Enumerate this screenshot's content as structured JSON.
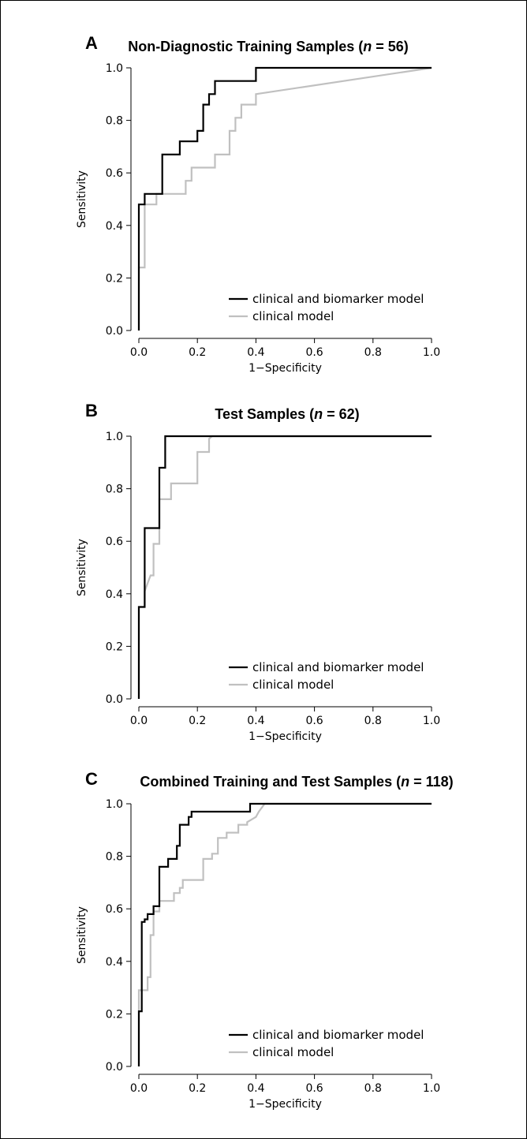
{
  "chart_data": [
    {
      "type": "line",
      "panel": "A",
      "title": "Non-Diagnostic Training Samples (",
      "title_n": "n",
      "title_end": " = 56)",
      "xlabel": "1−Specificity",
      "ylabel": "Sensitivity",
      "xlim": [
        0,
        1
      ],
      "ylim": [
        0,
        1
      ],
      "xticks": [
        "0.0",
        "0.2",
        "0.4",
        "0.6",
        "0.8",
        "1.0"
      ],
      "yticks": [
        "0.0",
        "0.2",
        "0.4",
        "0.6",
        "0.8",
        "1.0"
      ],
      "legend_position": "bottom-right",
      "series": [
        {
          "name": "clinical and biomarker model",
          "color": "#000000",
          "x": [
            0,
            0,
            0.02,
            0.02,
            0.08,
            0.08,
            0.14,
            0.14,
            0.2,
            0.2,
            0.22,
            0.22,
            0.24,
            0.24,
            0.26,
            0.26,
            0.28,
            0.28,
            0.4,
            0.4,
            1.0
          ],
          "y": [
            0,
            0.48,
            0.48,
            0.52,
            0.52,
            0.67,
            0.67,
            0.72,
            0.72,
            0.76,
            0.76,
            0.86,
            0.86,
            0.9,
            0.9,
            0.95,
            0.95,
            0.95,
            0.95,
            1.0,
            1.0
          ]
        },
        {
          "name": "clinical model",
          "color": "#c0c0c0",
          "x": [
            0,
            0,
            0.02,
            0.02,
            0.04,
            0.04,
            0.06,
            0.06,
            0.14,
            0.14,
            0.16,
            0.16,
            0.18,
            0.18,
            0.26,
            0.26,
            0.31,
            0.31,
            0.33,
            0.33,
            0.35,
            0.35,
            0.37,
            0.37,
            0.4,
            0.4,
            1.0
          ],
          "y": [
            0,
            0.24,
            0.24,
            0.48,
            0.48,
            0.48,
            0.48,
            0.52,
            0.52,
            0.52,
            0.52,
            0.57,
            0.57,
            0.62,
            0.62,
            0.67,
            0.67,
            0.76,
            0.76,
            0.81,
            0.81,
            0.86,
            0.86,
            0.86,
            0.86,
            0.9,
            1.0
          ]
        }
      ]
    },
    {
      "type": "line",
      "panel": "B",
      "title": "Test Samples (",
      "title_n": "n",
      "title_end": " = 62)",
      "xlabel": "1−Specificity",
      "ylabel": "Sensitivity",
      "xlim": [
        0,
        1
      ],
      "ylim": [
        0,
        1
      ],
      "xticks": [
        "0.0",
        "0.2",
        "0.4",
        "0.6",
        "0.8",
        "1.0"
      ],
      "yticks": [
        "0.0",
        "0.2",
        "0.4",
        "0.6",
        "0.8",
        "1.0"
      ],
      "legend_position": "bottom-right",
      "series": [
        {
          "name": "clinical and biomarker model",
          "color": "#000000",
          "x": [
            0,
            0,
            0.02,
            0.02,
            0.07,
            0.07,
            0.09,
            0.09,
            1.0
          ],
          "y": [
            0,
            0.35,
            0.35,
            0.65,
            0.65,
            0.88,
            0.88,
            1.0,
            1.0
          ]
        },
        {
          "name": "clinical model",
          "color": "#c0c0c0",
          "x": [
            0,
            0,
            0.02,
            0.02,
            0.04,
            0.05,
            0.05,
            0.07,
            0.07,
            0.11,
            0.11,
            0.2,
            0.2,
            0.24,
            0.24,
            0.25,
            1.0
          ],
          "y": [
            0,
            0.35,
            0.35,
            0.41,
            0.47,
            0.47,
            0.59,
            0.59,
            0.76,
            0.76,
            0.82,
            0.82,
            0.94,
            0.94,
            0.99,
            1.0,
            1.0
          ]
        }
      ]
    },
    {
      "type": "line",
      "panel": "C",
      "title": "Combined Training and Test Samples (",
      "title_n": "n",
      "title_end": " = 118)",
      "xlabel": "1−Specificity",
      "ylabel": "Sensitivity",
      "xlim": [
        0,
        1
      ],
      "ylim": [
        0,
        1
      ],
      "xticks": [
        "0.0",
        "0.2",
        "0.4",
        "0.6",
        "0.8",
        "1.0"
      ],
      "yticks": [
        "0.0",
        "0.2",
        "0.4",
        "0.6",
        "0.8",
        "1.0"
      ],
      "legend_position": "bottom-right",
      "series": [
        {
          "name": "clinical and biomarker model",
          "color": "#000000",
          "x": [
            0,
            0,
            0.01,
            0.01,
            0.02,
            0.02,
            0.03,
            0.03,
            0.05,
            0.05,
            0.07,
            0.07,
            0.1,
            0.1,
            0.13,
            0.13,
            0.14,
            0.14,
            0.15,
            0.15,
            0.17,
            0.17,
            0.18,
            0.18,
            0.38,
            0.38,
            1.0
          ],
          "y": [
            0,
            0.21,
            0.21,
            0.55,
            0.55,
            0.56,
            0.56,
            0.58,
            0.58,
            0.61,
            0.61,
            0.76,
            0.76,
            0.79,
            0.79,
            0.84,
            0.84,
            0.92,
            0.92,
            0.92,
            0.92,
            0.95,
            0.95,
            0.97,
            0.97,
            1.0,
            1.0
          ]
        },
        {
          "name": "clinical model",
          "color": "#c0c0c0",
          "x": [
            0,
            0,
            0.01,
            0.01,
            0.03,
            0.03,
            0.04,
            0.04,
            0.05,
            0.05,
            0.07,
            0.07,
            0.12,
            0.12,
            0.14,
            0.14,
            0.15,
            0.15,
            0.22,
            0.22,
            0.25,
            0.25,
            0.27,
            0.27,
            0.3,
            0.3,
            0.34,
            0.34,
            0.37,
            0.37,
            0.4,
            0.41,
            0.43,
            1.0
          ],
          "y": [
            0,
            0.29,
            0.29,
            0.29,
            0.29,
            0.34,
            0.34,
            0.5,
            0.5,
            0.59,
            0.59,
            0.63,
            0.63,
            0.66,
            0.66,
            0.68,
            0.68,
            0.71,
            0.71,
            0.79,
            0.79,
            0.81,
            0.81,
            0.87,
            0.87,
            0.89,
            0.89,
            0.92,
            0.92,
            0.93,
            0.95,
            0.97,
            1.0,
            1.0
          ]
        }
      ]
    }
  ]
}
